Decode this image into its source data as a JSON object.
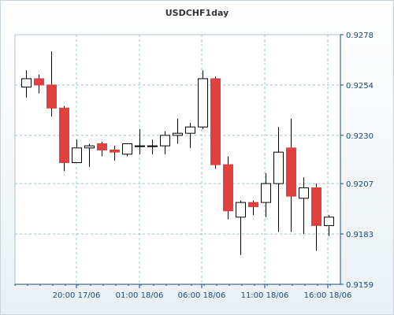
{
  "chart_data": {
    "type": "candlestick",
    "title": "USDCHF1day",
    "xlabel": "",
    "ylabel": "",
    "ylim": [
      0.9159,
      0.9278
    ],
    "y_ticks": [
      "0.9278",
      "0.9254",
      "0.9230",
      "0.9207",
      "0.9183",
      "0.9159"
    ],
    "x_ticks": [
      "20:00 17/06",
      "01:00 18/06",
      "06:00 18/06",
      "11:00 18/06",
      "16:00 18/06"
    ],
    "grid": true,
    "legend": "none",
    "up_color": "#ffffff",
    "down_color": "#e04040",
    "candles": [
      {
        "o": 0.9253,
        "h": 0.9261,
        "l": 0.9248,
        "c": 0.9257
      },
      {
        "o": 0.9257,
        "h": 0.9259,
        "l": 0.925,
        "c": 0.9254
      },
      {
        "o": 0.9254,
        "h": 0.927,
        "l": 0.9239,
        "c": 0.9243
      },
      {
        "o": 0.9243,
        "h": 0.9244,
        "l": 0.9213,
        "c": 0.9217
      },
      {
        "o": 0.9217,
        "h": 0.9228,
        "l": 0.9217,
        "c": 0.9224
      },
      {
        "o": 0.9224,
        "h": 0.9226,
        "l": 0.9215,
        "c": 0.9225
      },
      {
        "o": 0.9226,
        "h": 0.9227,
        "l": 0.922,
        "c": 0.9223
      },
      {
        "o": 0.9223,
        "h": 0.9225,
        "l": 0.9218,
        "c": 0.9222
      },
      {
        "o": 0.9221,
        "h": 0.9226,
        "l": 0.922,
        "c": 0.9226
      },
      {
        "o": 0.9225,
        "h": 0.9233,
        "l": 0.9221,
        "c": 0.9225
      },
      {
        "o": 0.9225,
        "h": 0.9228,
        "l": 0.9221,
        "c": 0.9225
      },
      {
        "o": 0.9225,
        "h": 0.9232,
        "l": 0.9221,
        "c": 0.923
      },
      {
        "o": 0.923,
        "h": 0.9238,
        "l": 0.9226,
        "c": 0.9231
      },
      {
        "o": 0.9231,
        "h": 0.9236,
        "l": 0.9224,
        "c": 0.9234
      },
      {
        "o": 0.9234,
        "h": 0.9261,
        "l": 0.9233,
        "c": 0.9257
      },
      {
        "o": 0.9257,
        "h": 0.9258,
        "l": 0.9214,
        "c": 0.9216
      },
      {
        "o": 0.9216,
        "h": 0.922,
        "l": 0.919,
        "c": 0.9194
      },
      {
        "o": 0.9191,
        "h": 0.9199,
        "l": 0.9173,
        "c": 0.9198
      },
      {
        "o": 0.9198,
        "h": 0.9199,
        "l": 0.9192,
        "c": 0.9196
      },
      {
        "o": 0.9198,
        "h": 0.9212,
        "l": 0.9191,
        "c": 0.9207
      },
      {
        "o": 0.9207,
        "h": 0.9234,
        "l": 0.9184,
        "c": 0.9222
      },
      {
        "o": 0.9224,
        "h": 0.9238,
        "l": 0.9184,
        "c": 0.9201
      },
      {
        "o": 0.92,
        "h": 0.921,
        "l": 0.9183,
        "c": 0.9205
      },
      {
        "o": 0.9205,
        "h": 0.9207,
        "l": 0.9175,
        "c": 0.9187
      },
      {
        "o": 0.9187,
        "h": 0.9192,
        "l": 0.9182,
        "c": 0.9191
      }
    ]
  }
}
